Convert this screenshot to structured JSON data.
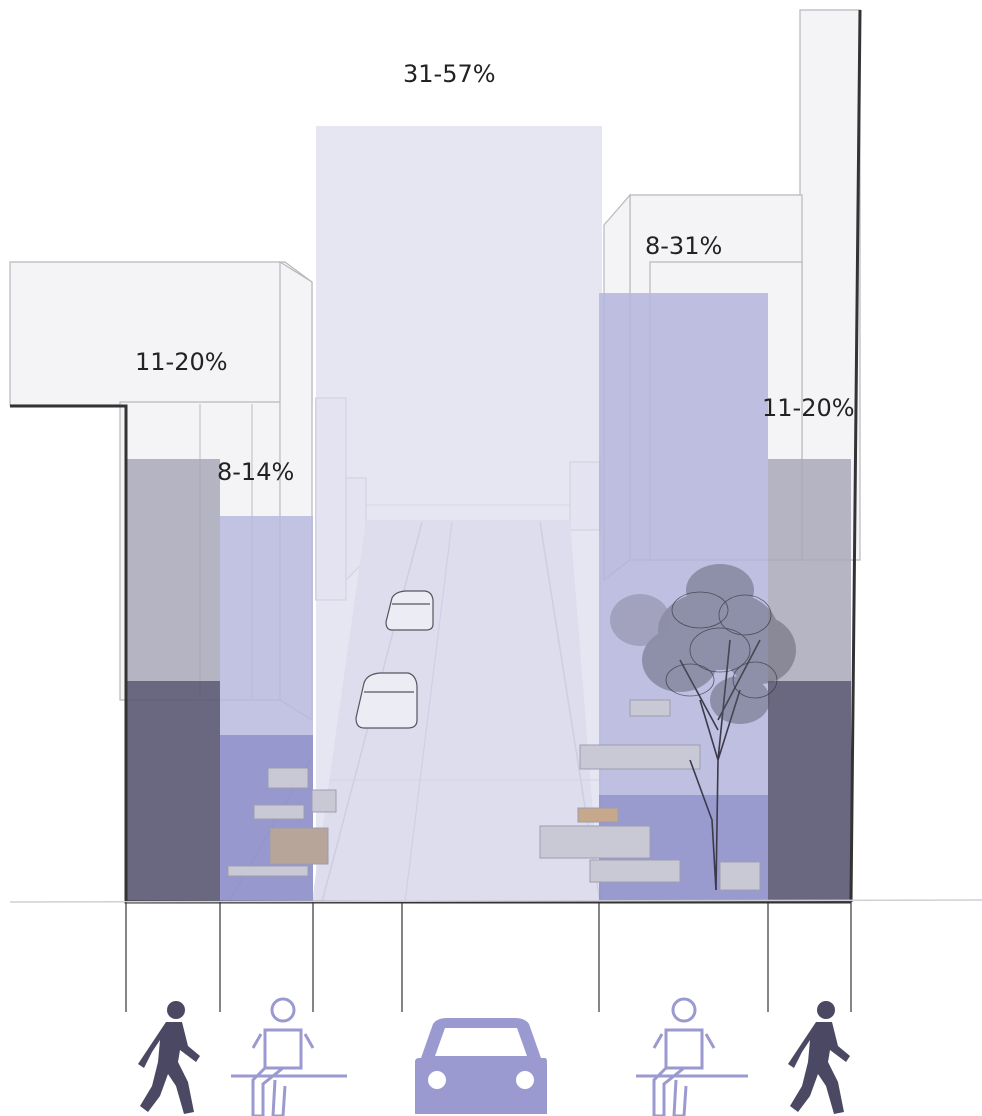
{
  "labels": {
    "center": "31-57%",
    "right_upper": "8-31%",
    "left_outer": "11-20%",
    "right_outer": "11-20%",
    "left_inner": "8-14%"
  },
  "zones": [
    {
      "id": "left-sidewalk",
      "use": "walking",
      "icon": "pedestrian-icon",
      "range": "11-20%"
    },
    {
      "id": "left-seating",
      "use": "sitting",
      "icon": "seated-person-icon",
      "range": "8-14%"
    },
    {
      "id": "roadway",
      "use": "driving",
      "icon": "car-icon",
      "range": "31-57%"
    },
    {
      "id": "right-seating",
      "use": "sitting",
      "icon": "seated-person-icon",
      "range": "8-31%"
    },
    {
      "id": "right-sidewalk",
      "use": "walking",
      "icon": "pedestrian-icon",
      "range": "11-20%"
    }
  ],
  "colors": {
    "sidewalk_dark": "#5d5a75",
    "sidewalk_light": "#a9a8b8",
    "seating_dark": "#8e8fc9",
    "seating_light": "#b9bade",
    "roadway": "#dcdcef",
    "icon_dark": "#4a4862",
    "icon_light": "#9a9ad0",
    "outline": "#333333"
  }
}
